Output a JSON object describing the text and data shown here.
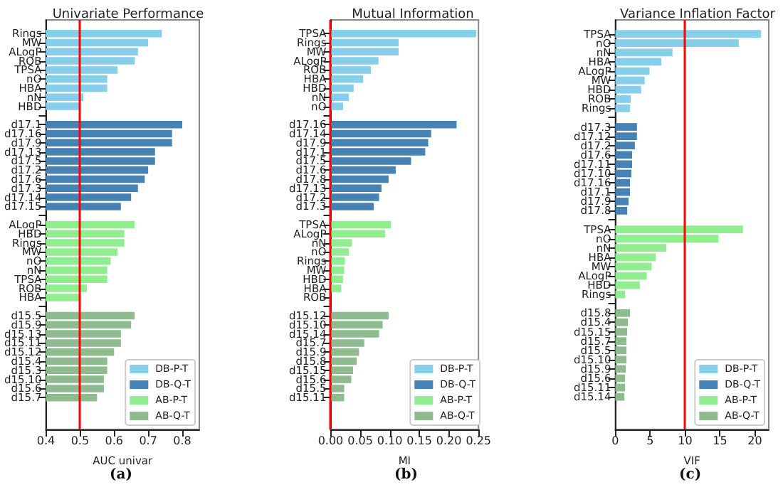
{
  "chart_data": [
    {
      "type": "bar",
      "orientation": "horizontal",
      "title": "Univariate Performance",
      "xlabel": "AUC univar",
      "annotations": [
        "(a)"
      ],
      "categories": [
        "Rings",
        "MW",
        "ALogP",
        "ROB",
        "TPSA",
        "nO",
        "HBA",
        "nN",
        "HBD",
        null,
        "d17.1",
        "d17.16",
        "d17.9",
        "d17.13",
        "d17.5",
        "d17.2",
        "d17.6",
        "d17.3",
        "d17.14",
        "d17.15",
        null,
        "ALogP",
        "HBD",
        "Rings",
        "MW",
        "nO",
        "nN",
        "TPSA",
        "ROB",
        "HBA",
        null,
        "d15.5",
        "d15.9",
        "d15.13",
        "d15.11",
        "d15.12",
        "d15.4",
        "d15.3",
        "d15.10",
        "d15.6",
        "d15.7"
      ],
      "series": [
        {
          "name": "DB-P-T",
          "color": "#87ceeb",
          "values": [
            0.74,
            0.7,
            0.67,
            0.66,
            0.61,
            0.58,
            0.58,
            0.51,
            0.5,
            null,
            null,
            null,
            null,
            null,
            null,
            null,
            null,
            null,
            null,
            null,
            null,
            null,
            null,
            null,
            null,
            null,
            null,
            null,
            null,
            null,
            null,
            null,
            null,
            null,
            null,
            null,
            null,
            null,
            null,
            null,
            null
          ]
        },
        {
          "name": "DB-Q-T",
          "color": "#4682b4",
          "values": [
            null,
            null,
            null,
            null,
            null,
            null,
            null,
            null,
            null,
            null,
            0.8,
            0.77,
            0.77,
            0.72,
            0.72,
            0.7,
            0.69,
            0.67,
            0.65,
            0.62,
            null,
            null,
            null,
            null,
            null,
            null,
            null,
            null,
            null,
            null,
            null,
            null,
            null,
            null,
            null,
            null,
            null,
            null,
            null,
            null,
            null
          ]
        },
        {
          "name": "AB-P-T",
          "color": "#90ee90",
          "values": [
            null,
            null,
            null,
            null,
            null,
            null,
            null,
            null,
            null,
            null,
            null,
            null,
            null,
            null,
            null,
            null,
            null,
            null,
            null,
            null,
            null,
            0.66,
            0.63,
            0.63,
            0.61,
            0.59,
            0.58,
            0.58,
            0.52,
            0.5,
            null,
            null,
            null,
            null,
            null,
            null,
            null,
            null,
            null,
            null,
            null
          ]
        },
        {
          "name": "AB-Q-T",
          "color": "#8fbc8f",
          "values": [
            null,
            null,
            null,
            null,
            null,
            null,
            null,
            null,
            null,
            null,
            null,
            null,
            null,
            null,
            null,
            null,
            null,
            null,
            null,
            null,
            null,
            null,
            null,
            null,
            null,
            null,
            null,
            null,
            null,
            null,
            null,
            0.66,
            0.65,
            0.62,
            0.62,
            0.6,
            0.58,
            0.58,
            0.57,
            0.57,
            0.55
          ]
        }
      ],
      "xlim": [
        0.4,
        0.85
      ],
      "xticks": [
        0.4,
        0.5,
        0.6,
        0.7,
        0.8
      ],
      "ref_lines": [
        {
          "axis": "x",
          "value": 0.5,
          "color": "#ff0000"
        }
      ],
      "legend": "bottom right",
      "grid": false
    },
    {
      "type": "bar",
      "orientation": "horizontal",
      "title": "Mutual Information",
      "xlabel": "MI",
      "annotations": [
        "(b)"
      ],
      "categories": [
        "TPSA",
        "Rings",
        "MW",
        "ALogP",
        "ROB",
        "HBA",
        "HBD",
        "nN",
        "nO",
        null,
        "d17.16",
        "d17.14",
        "d17.9",
        "d17.1",
        "d17.5",
        "d17.6",
        "d17.8",
        "d17.13",
        "d17.2",
        "d17.3",
        null,
        "TPSA",
        "ALogP",
        "nN",
        "nO",
        "Rings",
        "MW",
        "HBD",
        "HBA",
        "ROB",
        null,
        "d15.12",
        "d15.10",
        "d15.14",
        "d15.7",
        "d15.9",
        "d15.8",
        "d15.15",
        "d15.6",
        "d15.5",
        "d15.11"
      ],
      "series": [
        {
          "name": "DB-P-T",
          "color": "#87ceeb",
          "values": [
            0.246,
            0.115,
            0.115,
            0.081,
            0.068,
            0.055,
            0.039,
            0.031,
            0.021,
            null,
            null,
            null,
            null,
            null,
            null,
            null,
            null,
            null,
            null,
            null,
            null,
            null,
            null,
            null,
            null,
            null,
            null,
            null,
            null,
            null,
            null,
            null,
            null,
            null,
            null,
            null,
            null,
            null,
            null,
            null,
            null
          ]
        },
        {
          "name": "DB-Q-T",
          "color": "#4682b4",
          "values": [
            null,
            null,
            null,
            null,
            null,
            null,
            null,
            null,
            null,
            null,
            0.213,
            0.17,
            0.165,
            0.16,
            0.136,
            0.11,
            0.098,
            0.086,
            0.082,
            0.073,
            null,
            null,
            null,
            null,
            null,
            null,
            null,
            null,
            null,
            null,
            null,
            null,
            null,
            null,
            null,
            null,
            null,
            null,
            null,
            null,
            null
          ]
        },
        {
          "name": "AB-P-T",
          "color": "#90ee90",
          "values": [
            null,
            null,
            null,
            null,
            null,
            null,
            null,
            null,
            null,
            null,
            null,
            null,
            null,
            null,
            null,
            null,
            null,
            null,
            null,
            null,
            null,
            0.102,
            0.092,
            0.036,
            0.031,
            0.024,
            0.023,
            0.021,
            0.018,
            0,
            null,
            null,
            null,
            null,
            null,
            null,
            null,
            null,
            null,
            null,
            null
          ]
        },
        {
          "name": "AB-Q-T",
          "color": "#8fbc8f",
          "values": [
            null,
            null,
            null,
            null,
            null,
            null,
            null,
            null,
            null,
            null,
            null,
            null,
            null,
            null,
            null,
            null,
            null,
            null,
            null,
            null,
            null,
            null,
            null,
            null,
            null,
            null,
            null,
            null,
            null,
            null,
            null,
            0.098,
            0.088,
            0.082,
            0.057,
            0.048,
            0.044,
            0.038,
            0.035,
            0.023,
            0.023
          ]
        }
      ],
      "xlim": [
        0,
        0.25
      ],
      "xticks": [
        {
          "value": 0,
          "label": "0.00"
        },
        {
          "value": 0.05,
          "label": "0.05"
        },
        {
          "value": 0.1,
          "label": "0.10"
        },
        {
          "value": 0.15,
          "label": "0.15"
        },
        {
          "value": 0.2,
          "label": "0.20"
        },
        {
          "value": 0.25,
          "label": "0.25"
        }
      ],
      "ref_lines": [
        {
          "axis": "x",
          "value": 0,
          "color": "#ff0000"
        }
      ],
      "legend": "bottom right",
      "grid": false
    },
    {
      "type": "bar",
      "orientation": "horizontal",
      "title": "Variance Inflation Factor",
      "xlabel": "VIF",
      "annotations": [
        "(c)"
      ],
      "categories": [
        "TPSA",
        "nO",
        "nN",
        "HBA",
        "ALogP",
        "MW",
        "HBD",
        "ROB",
        "Rings",
        null,
        "d17.3",
        "d17.12",
        "d17.2",
        "d17.6",
        "d17.11",
        "d17.10",
        "d17.16",
        "d17.1",
        "d17.9",
        "d17.8",
        null,
        "TPSA",
        "nO",
        "nN",
        "HBA",
        "MW",
        "ALogP",
        "HBD",
        "Rings",
        null,
        "d15.8",
        "d15.4",
        "d15.15",
        "d15.7",
        "d15.5",
        "d15.10",
        "d15.9",
        "d15.6",
        "d15.11",
        "d15.14"
      ],
      "series": [
        {
          "name": "DB-P-T",
          "color": "#87ceeb",
          "values": [
            20.9,
            17.7,
            8.2,
            6.6,
            4.9,
            4.2,
            3.7,
            2.2,
            2.1,
            null,
            null,
            null,
            null,
            null,
            null,
            null,
            null,
            null,
            null,
            null,
            null,
            null,
            null,
            null,
            null,
            null,
            null,
            null,
            null,
            null,
            null,
            null,
            null,
            null,
            null,
            null,
            null,
            null,
            null,
            null
          ]
        },
        {
          "name": "DB-Q-T",
          "color": "#4682b4",
          "values": [
            null,
            null,
            null,
            null,
            null,
            null,
            null,
            null,
            null,
            null,
            3.1,
            3.1,
            2.8,
            2.4,
            2.4,
            2.3,
            2.1,
            2.1,
            1.9,
            1.7,
            null,
            null,
            null,
            null,
            null,
            null,
            null,
            null,
            null,
            null,
            null,
            null,
            null,
            null,
            null,
            null,
            null,
            null,
            null,
            null
          ]
        },
        {
          "name": "AB-P-T",
          "color": "#90ee90",
          "values": [
            null,
            null,
            null,
            null,
            null,
            null,
            null,
            null,
            null,
            null,
            null,
            null,
            null,
            null,
            null,
            null,
            null,
            null,
            null,
            null,
            null,
            18.3,
            14.8,
            7.3,
            5.8,
            5.2,
            4.5,
            3.5,
            1.4,
            null,
            null,
            null,
            null,
            null,
            null,
            null,
            null,
            null,
            null,
            null
          ]
        },
        {
          "name": "AB-Q-T",
          "color": "#8fbc8f",
          "values": [
            null,
            null,
            null,
            null,
            null,
            null,
            null,
            null,
            null,
            null,
            null,
            null,
            null,
            null,
            null,
            null,
            null,
            null,
            null,
            null,
            null,
            null,
            null,
            null,
            null,
            null,
            null,
            null,
            null,
            null,
            2.1,
            1.8,
            1.7,
            1.6,
            1.6,
            1.6,
            1.5,
            1.4,
            1.4,
            1.3
          ]
        }
      ],
      "xlim": [
        0,
        22
      ],
      "xticks": [
        0,
        5,
        10,
        15,
        20
      ],
      "ref_lines": [
        {
          "axis": "x",
          "value": 10,
          "color": "#ff0000"
        }
      ],
      "legend": "bottom right",
      "grid": false
    }
  ]
}
